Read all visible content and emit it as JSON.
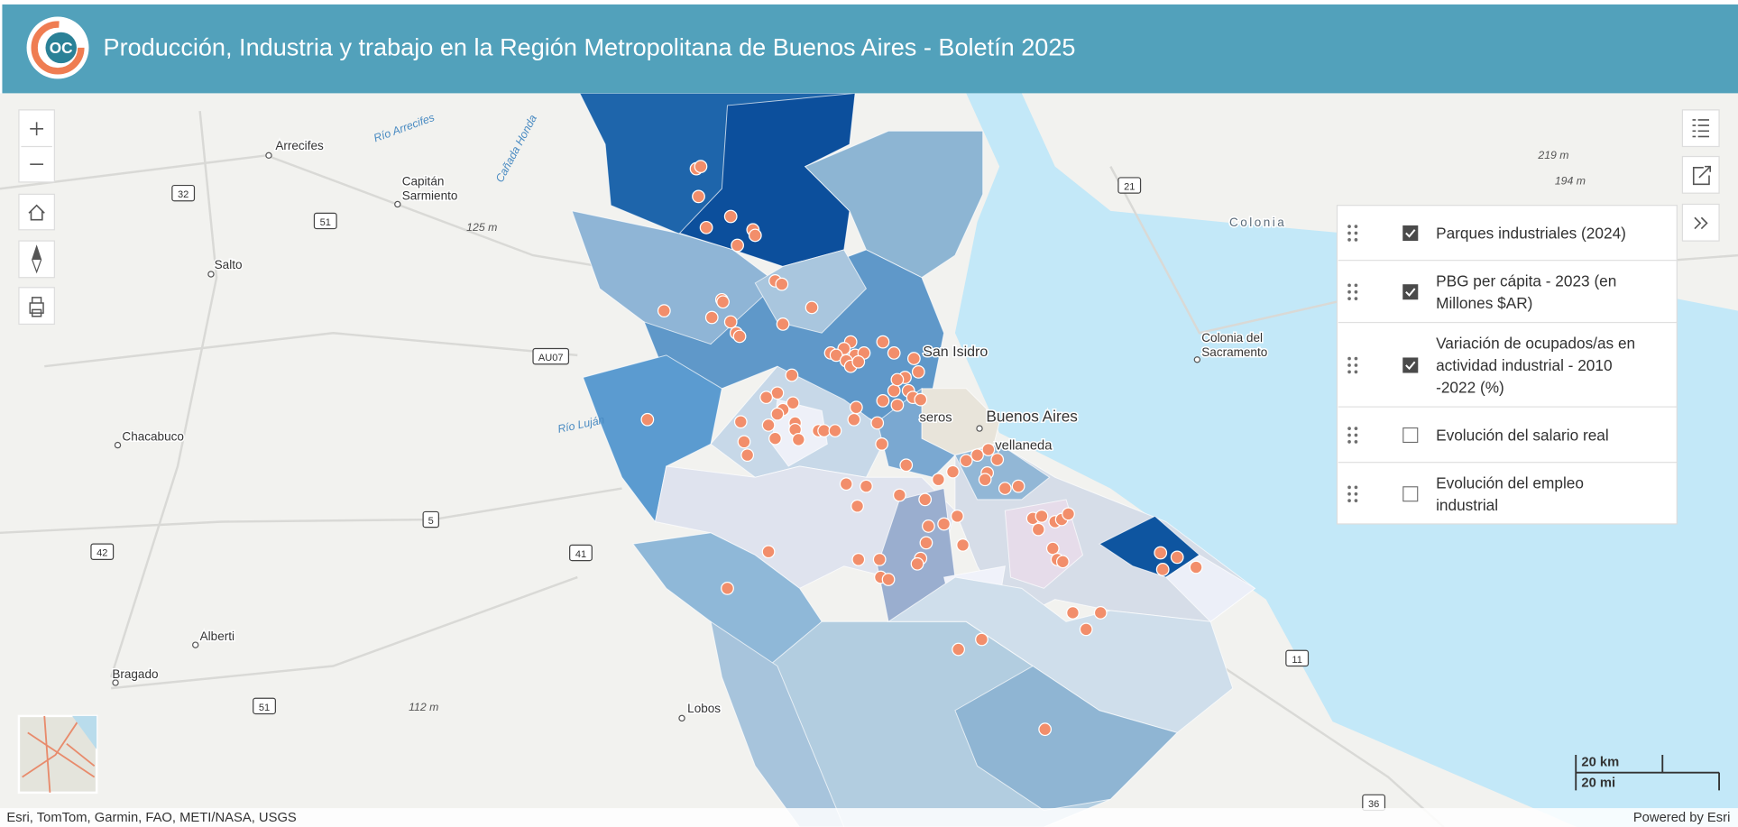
{
  "header": {
    "logo": "OC",
    "title": "Producción, Industria y trabajo en la Región Metropolitana de Buenos Aires - Boletín 2025"
  },
  "map": {
    "places": [
      [
        "Arrecifes"
      ],
      [
        "Capitán",
        "Sarmiento"
      ],
      [
        "Salto"
      ],
      [
        "Chacabuco"
      ],
      [
        "Alberti"
      ],
      [
        "Bragado"
      ],
      [
        "Lobos"
      ],
      [
        "San Isidro"
      ],
      [
        "Buenos Aires"
      ],
      [
        "vellaneda"
      ],
      [
        "seros"
      ],
      [
        "Colonia"
      ],
      [
        "Colonia del",
        "Sacramento"
      ]
    ],
    "rivers": [
      "Río Arrecifes",
      "Cañada Honda",
      "Río Luján"
    ],
    "elevations": [
      "125 m",
      "112 m",
      "219 m",
      "194 m"
    ],
    "road_shields": [
      "32",
      "51",
      "21",
      "AU07",
      "5",
      "42",
      "41",
      "51",
      "11",
      "36"
    ]
  },
  "layer_list": {
    "items": [
      {
        "label": "Parques industriales (2024)",
        "checked": true
      },
      {
        "label": "PBG per cápita - 2023 (en Millones $AR)",
        "checked": true
      },
      {
        "label": "Variación de ocupados/as en actividad industrial - 2010 -2022 (%)",
        "checked": true
      },
      {
        "label": "Evolución del salario real",
        "checked": false
      },
      {
        "label": "Evolución del empleo industrial",
        "checked": false
      }
    ]
  },
  "scale_bar": {
    "metric": "20 km",
    "imperial": "20 mi"
  },
  "attribution": {
    "sources": "Esri, TomTom, Garmin, FAO, METI/NASA, USGS",
    "powered_by": "Powered by Esri"
  }
}
